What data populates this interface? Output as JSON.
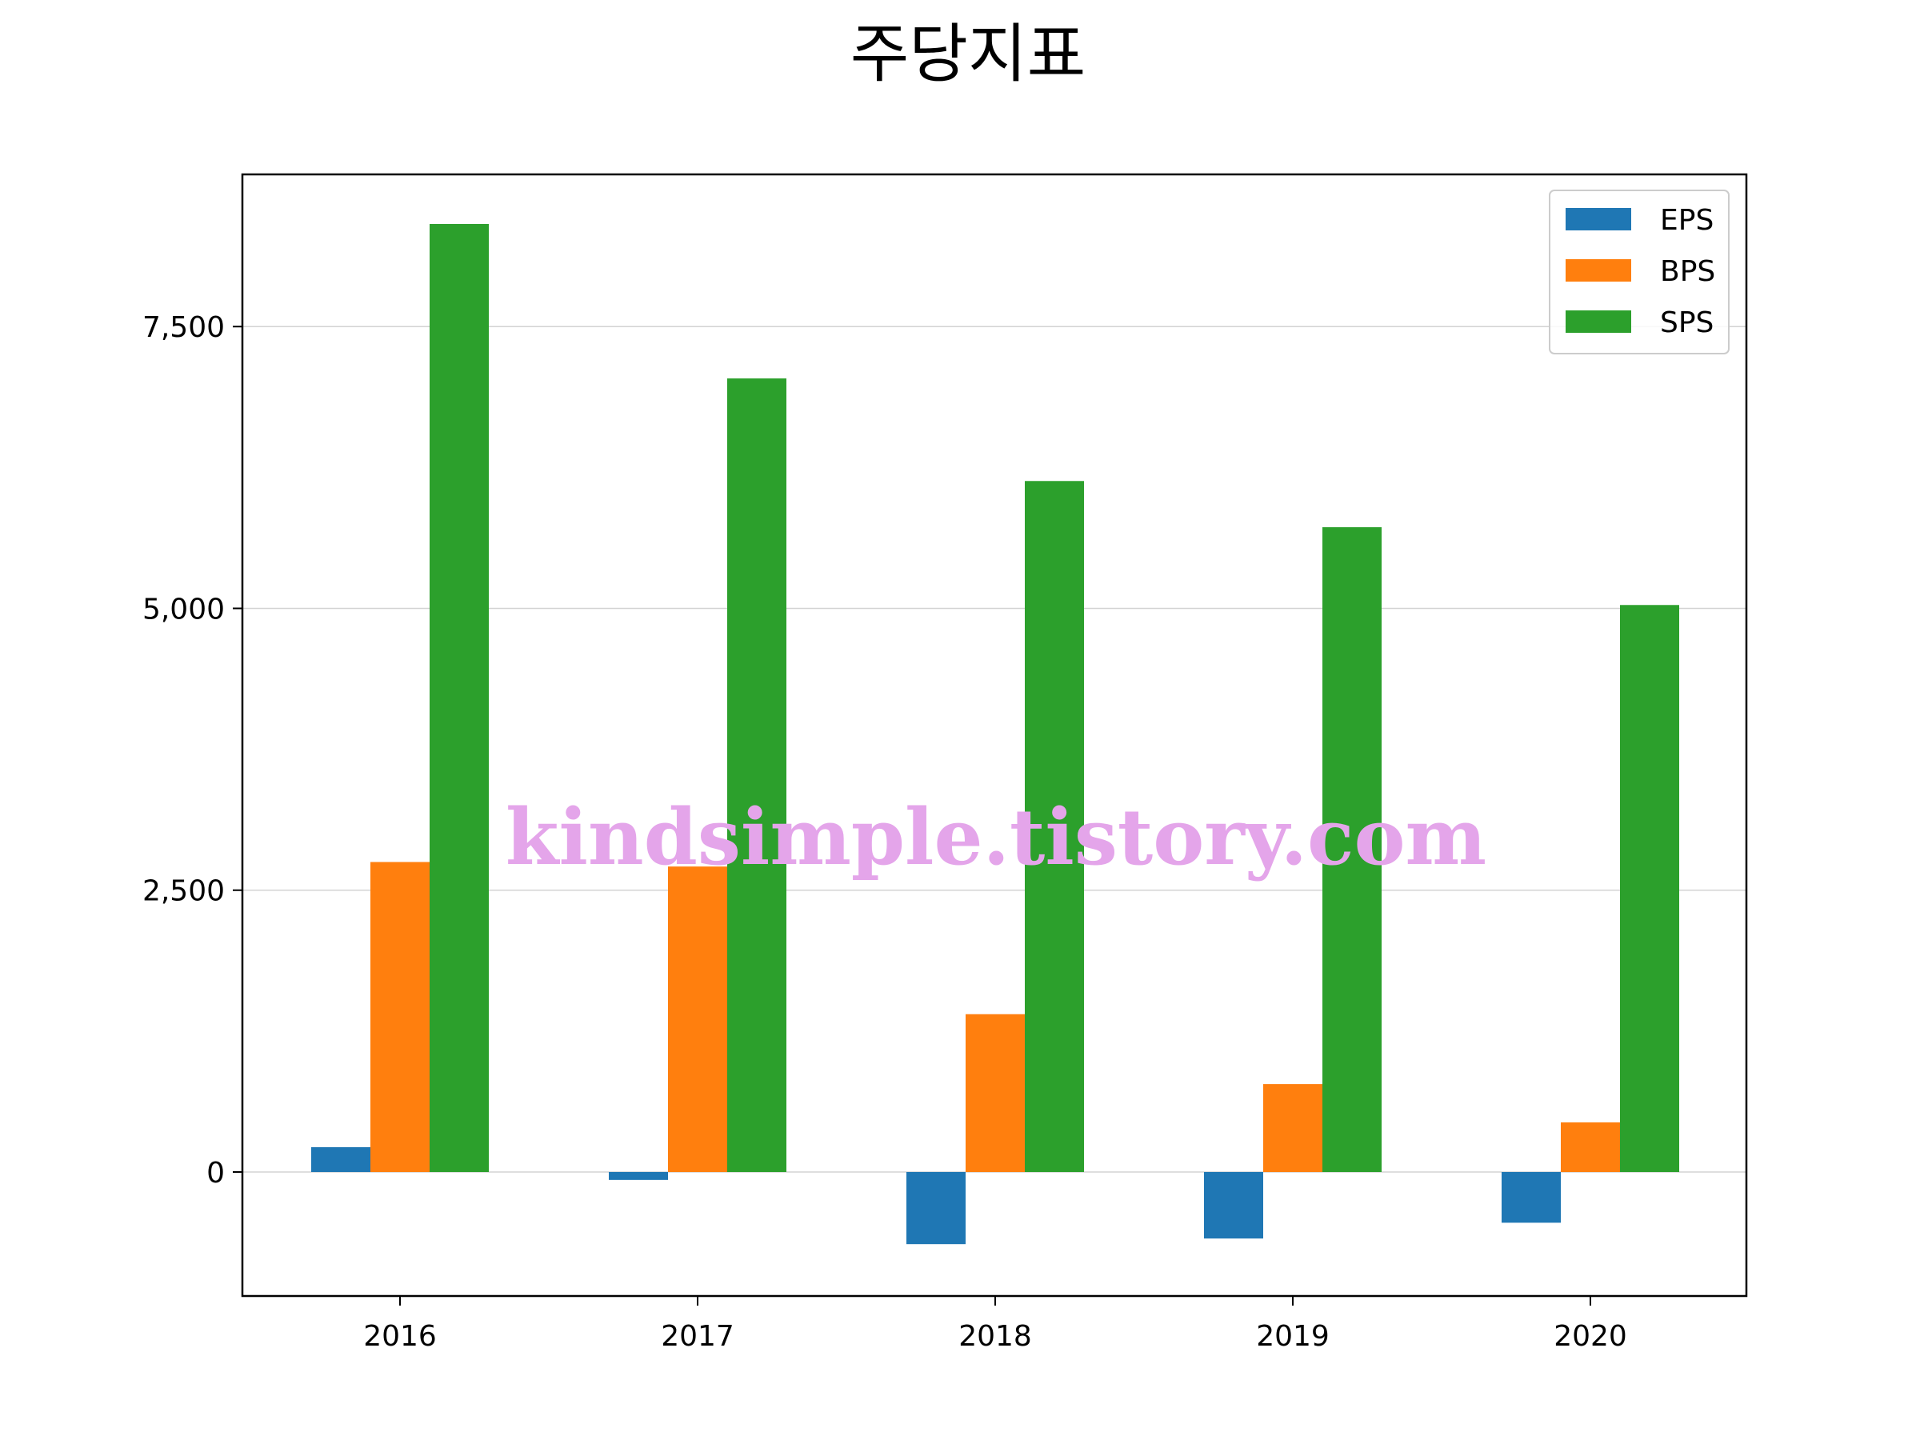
{
  "chart_data": {
    "type": "bar",
    "title": "주당지표",
    "xlabel": "",
    "ylabel": "",
    "categories": [
      "2016",
      "2017",
      "2018",
      "2019",
      "2020"
    ],
    "series": [
      {
        "name": "EPS",
        "color": "#1f77b4",
        "values": [
          220,
          -70,
          -640,
          -590,
          -450
        ]
      },
      {
        "name": "BPS",
        "color": "#ff7f0e",
        "values": [
          2750,
          2710,
          1400,
          780,
          440
        ]
      },
      {
        "name": "SPS",
        "color": "#2ca02c",
        "values": [
          8410,
          7040,
          6130,
          5720,
          5030
        ]
      }
    ],
    "ylim": [
      -1100,
      8850
    ],
    "yticks": [
      0,
      2500,
      5000,
      7500
    ],
    "ytick_labels": [
      "0",
      "2,500",
      "5,000",
      "7,500"
    ],
    "grid": "horizontal",
    "legend_position": "top-right"
  },
  "watermark": "kindsimple.tistory.com"
}
